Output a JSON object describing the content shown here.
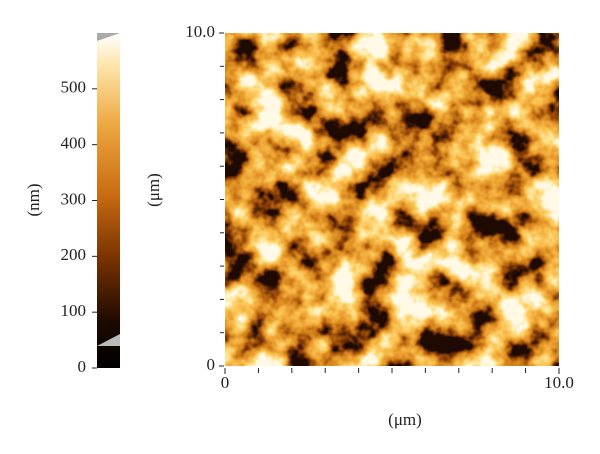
{
  "chart_data": {
    "type": "image",
    "colorbar": {
      "label": "(nm)",
      "lim": [
        0,
        600
      ],
      "ticks": [
        0,
        100,
        200,
        300,
        400,
        500
      ]
    },
    "xlabel": "(μm)",
    "ylabel": "(μm)",
    "xlim": [
      0,
      10
    ],
    "ylim": [
      0,
      10
    ],
    "xticks": [
      {
        "value": 0,
        "label": "0"
      },
      {
        "value": 10,
        "label": "10.0"
      }
    ],
    "yticks": [
      {
        "value": 0,
        "label": "0"
      },
      {
        "value": 10,
        "label": "10.0"
      }
    ],
    "xminorticks": [
      1,
      2,
      3,
      4,
      5,
      6,
      7,
      8,
      9
    ],
    "yminorticks": [
      1,
      2,
      3,
      4,
      5,
      6,
      7,
      8,
      9
    ]
  }
}
